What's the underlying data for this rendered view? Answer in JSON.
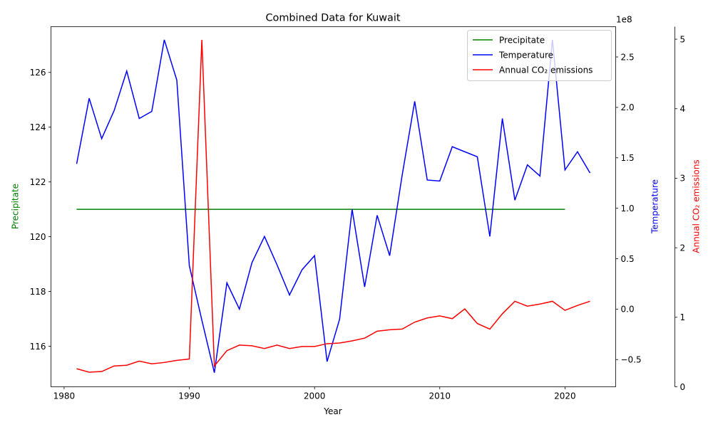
{
  "chart_data": {
    "type": "line",
    "title": "Combined Data for Kuwait",
    "xlabel": "Year",
    "xlim": [
      1978.95,
      2024.05
    ],
    "x_ticks": [
      1980,
      1990,
      2000,
      2010,
      2020
    ],
    "legend_position": "top-right",
    "axes": {
      "precip": {
        "label": "Precipitate",
        "color": "#008000",
        "ylim": [
          114.52,
          127.67
        ],
        "ticks": [
          116,
          118,
          120,
          122,
          124,
          126
        ]
      },
      "temp": {
        "label": "Temperature",
        "color": "#0000ff",
        "ylim": [
          -0.77,
          2.8
        ],
        "ticks": [
          -0.5,
          0.0,
          0.5,
          1.0,
          1.5,
          2.0,
          2.5
        ],
        "tick_labels": [
          "−0.5",
          "0.0",
          "0.5",
          "1.0",
          "1.5",
          "2.0",
          "2.5"
        ]
      },
      "co2": {
        "label": "Annual CO₂ emissions",
        "color": "#ff0000",
        "ylim": [
          0.0,
          5.18
        ],
        "ticks": [
          0,
          1,
          2,
          3,
          4,
          5
        ],
        "offset_text": "1e8"
      }
    },
    "series": [
      {
        "name": "Precipitate",
        "axis": "precip",
        "color": "#008000",
        "x": [
          1981,
          2020
        ],
        "y": [
          121.0,
          121.0
        ]
      },
      {
        "name": "Temperature",
        "axis": "temp",
        "color": "#0000ff",
        "x": [
          1981,
          1982,
          1983,
          1984,
          1985,
          1986,
          1987,
          1988,
          1989,
          1990,
          1991,
          1992,
          1993,
          1994,
          1995,
          1996,
          1997,
          1998,
          1999,
          2000,
          2001,
          2002,
          2003,
          2004,
          2005,
          2006,
          2007,
          2008,
          2009,
          2010,
          2011,
          2012,
          2013,
          2014,
          2015,
          2016,
          2017,
          2018,
          2019,
          2020,
          2021,
          2022
        ],
        "y": [
          1.44,
          2.09,
          1.69,
          1.97,
          2.36,
          1.89,
          1.96,
          2.67,
          2.27,
          0.43,
          -0.11,
          -0.63,
          0.26,
          0.0,
          0.46,
          0.72,
          0.44,
          0.14,
          0.39,
          0.53,
          -0.52,
          -0.1,
          0.99,
          0.22,
          0.93,
          0.53,
          1.33,
          2.06,
          1.28,
          1.27,
          1.61,
          1.56,
          1.51,
          0.72,
          1.89,
          1.08,
          1.43,
          1.32,
          2.67,
          1.38,
          1.56,
          1.35
        ]
      },
      {
        "name": "Annual CO₂ emissions",
        "axis": "co2",
        "color": "#ff0000",
        "x": [
          1981,
          1982,
          1983,
          1984,
          1985,
          1986,
          1987,
          1988,
          1989,
          1990,
          1991,
          1992,
          1993,
          1994,
          1995,
          1996,
          1997,
          1998,
          1999,
          2000,
          2001,
          2002,
          2003,
          2004,
          2005,
          2006,
          2007,
          2008,
          2009,
          2010,
          2011,
          2012,
          2013,
          2014,
          2015,
          2016,
          2017,
          2018,
          2019,
          2020,
          2021,
          2022
        ],
        "y": [
          0.26,
          0.21,
          0.22,
          0.3,
          0.31,
          0.37,
          0.33,
          0.35,
          0.38,
          0.4,
          4.99,
          0.3,
          0.52,
          0.6,
          0.59,
          0.55,
          0.6,
          0.55,
          0.58,
          0.58,
          0.62,
          0.63,
          0.66,
          0.7,
          0.8,
          0.82,
          0.83,
          0.93,
          0.99,
          1.02,
          0.98,
          1.12,
          0.91,
          0.83,
          1.05,
          1.23,
          1.16,
          1.19,
          1.23,
          1.1,
          1.17,
          1.23
        ]
      }
    ]
  }
}
